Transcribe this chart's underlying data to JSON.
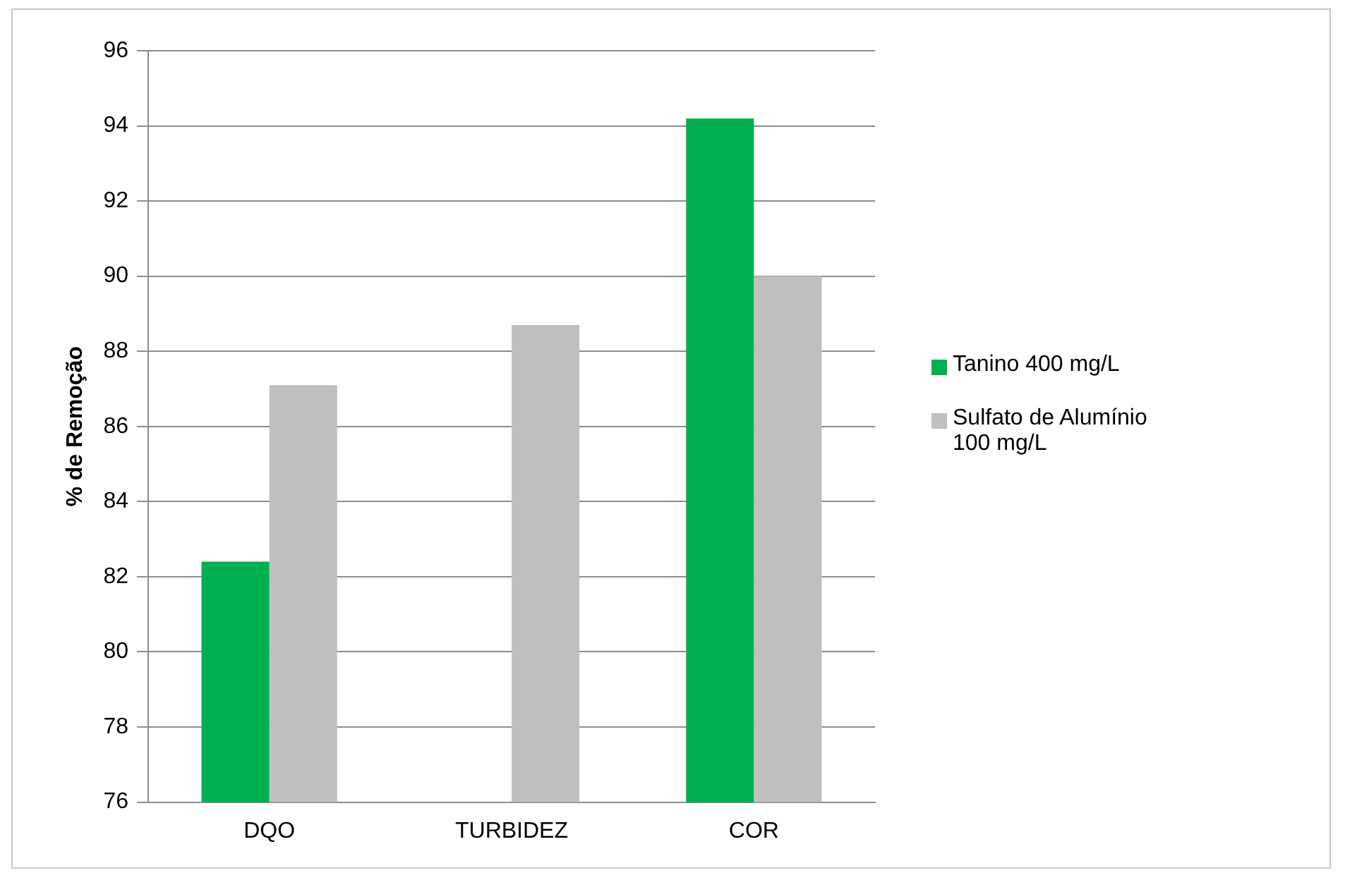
{
  "chart_data": {
    "type": "bar",
    "ylabel": "% de Remoção",
    "categories": [
      "DQO",
      "TURBIDEZ",
      "COR"
    ],
    "series": [
      {
        "name": "Tanino 400 mg/L",
        "color": "#00b050",
        "values": [
          82.4,
          null,
          94.2
        ]
      },
      {
        "name": "Sulfato de Alumínio 100 mg/L",
        "color": "#bfbfbf",
        "values": [
          87.1,
          88.7,
          90.0
        ]
      }
    ],
    "ylim": [
      76,
      96
    ],
    "yticks": [
      76,
      78,
      80,
      82,
      84,
      86,
      88,
      90,
      92,
      94,
      96
    ],
    "grid": "y",
    "legend": "right"
  }
}
